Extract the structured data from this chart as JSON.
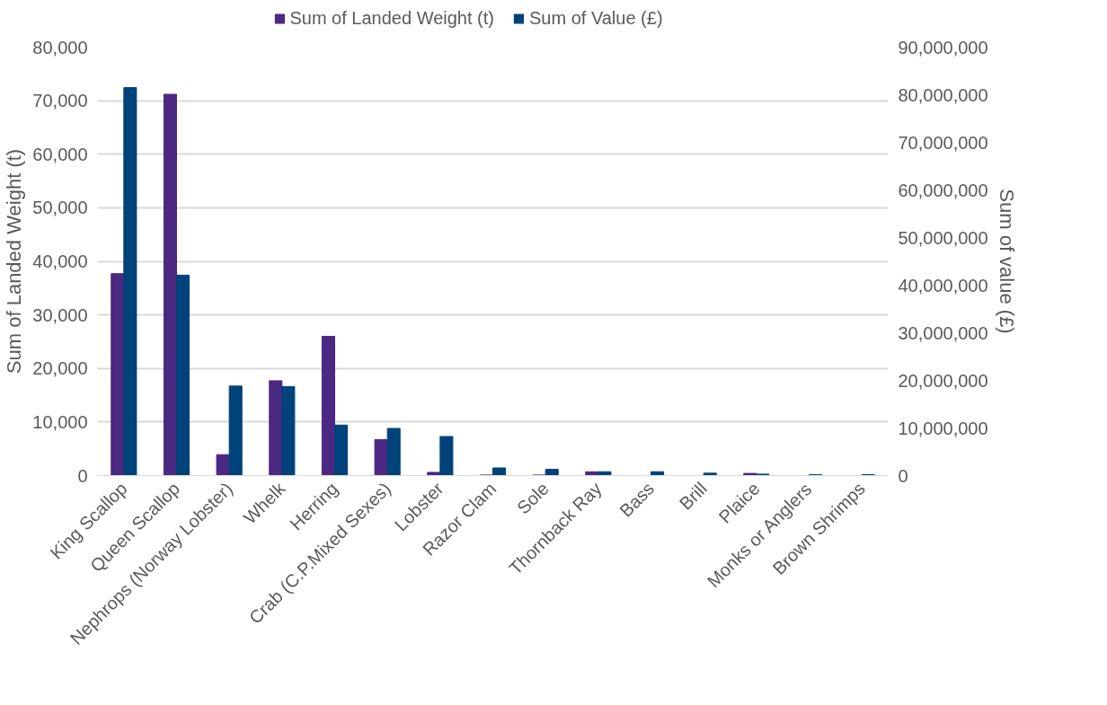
{
  "chart_data": {
    "type": "bar",
    "categories": [
      "King Scallop",
      "Queen Scallop",
      "Nephrops (Norway Lobster)",
      "Whelk",
      "Herring",
      "Crab (C.P.Mixed Sexes)",
      "Lobster",
      "Razor Clam",
      "Sole",
      "Thornback Ray",
      "Bass",
      "Brill",
      "Plaice",
      "Monks or Anglers",
      "Brown Shrimps"
    ],
    "series": [
      {
        "name": "Sum of Landed Weight (t)",
        "color": "#4b2882",
        "values": [
          37700,
          71200,
          3900,
          17700,
          26000,
          6700,
          600,
          100,
          100,
          700,
          0,
          0,
          400,
          0,
          0
        ]
      },
      {
        "name": "Sum of Value (£)",
        "color": "#00427a",
        "axis": "y2",
        "values": [
          81500000,
          42100000,
          18800000,
          18700000,
          10600000,
          9900000,
          8200000,
          1600000,
          1300000,
          800000,
          800000,
          500000,
          300000,
          200000,
          200000
        ]
      }
    ],
    "ylabel": "Sum of Landed Weight (t)",
    "y2label": "Sum of value (£)",
    "ylim": [
      0,
      80000
    ],
    "yticks": [
      {
        "value": 0,
        "label": "0"
      },
      {
        "value": 10000,
        "label": "10,000"
      },
      {
        "value": 20000,
        "label": "20,000"
      },
      {
        "value": 30000,
        "label": "30,000"
      },
      {
        "value": 40000,
        "label": "40,000"
      },
      {
        "value": 50000,
        "label": "50,000"
      },
      {
        "value": 60000,
        "label": "60,000"
      },
      {
        "value": 70000,
        "label": "70,000"
      },
      {
        "value": 80000,
        "label": "80,000"
      }
    ],
    "y2lim": [
      0,
      90000000
    ],
    "y2ticks": [
      {
        "value": 0,
        "label": "0"
      },
      {
        "value": 10000000,
        "label": "10,000,000"
      },
      {
        "value": 20000000,
        "label": "20,000,000"
      },
      {
        "value": 30000000,
        "label": "30,000,000"
      },
      {
        "value": 40000000,
        "label": "40,000,000"
      },
      {
        "value": 50000000,
        "label": "50,000,000"
      },
      {
        "value": 60000000,
        "label": "60,000,000"
      },
      {
        "value": 70000000,
        "label": "70,000,000"
      },
      {
        "value": 80000000,
        "label": "80,000,000"
      },
      {
        "value": 90000000,
        "label": "90,000,000"
      }
    ],
    "grid": "y",
    "legend": "top"
  }
}
